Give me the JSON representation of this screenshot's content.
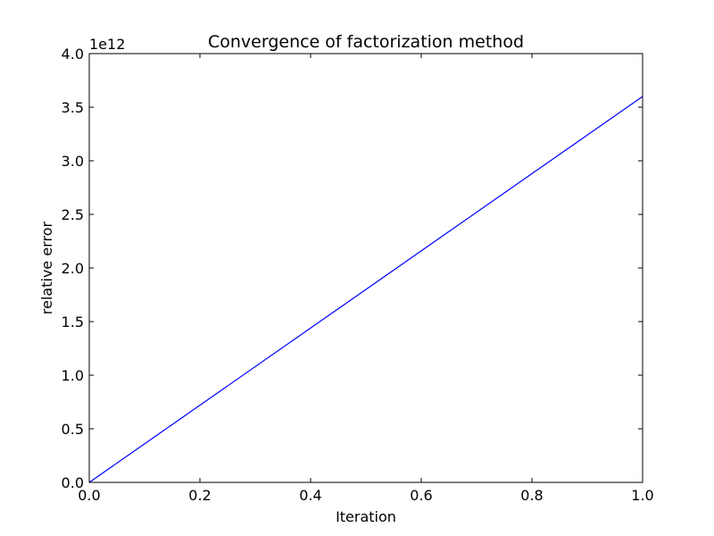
{
  "chart_data": {
    "type": "line",
    "title": "Convergence of factorization method",
    "xlabel": "Iteration",
    "ylabel": "relative error",
    "y_offset_label": "1e12",
    "xlim": [
      0.0,
      1.0
    ],
    "ylim": [
      0.0,
      4.0
    ],
    "y_scale_multiplier": 1000000000000.0,
    "x_ticks": [
      0.0,
      0.2,
      0.4,
      0.6,
      0.8,
      1.0
    ],
    "x_tick_labels": [
      "0.0",
      "0.2",
      "0.4",
      "0.6",
      "0.8",
      "1.0"
    ],
    "y_ticks": [
      0.0,
      0.5,
      1.0,
      1.5,
      2.0,
      2.5,
      3.0,
      3.5,
      4.0
    ],
    "y_tick_labels": [
      "0.0",
      "0.5",
      "1.0",
      "1.5",
      "2.0",
      "2.5",
      "3.0",
      "3.5",
      "4.0"
    ],
    "grid": false,
    "legend": "none",
    "series": [
      {
        "color": "#0000ff",
        "x": [
          0.0,
          1.0
        ],
        "y": [
          0.0,
          3.6
        ]
      }
    ]
  }
}
